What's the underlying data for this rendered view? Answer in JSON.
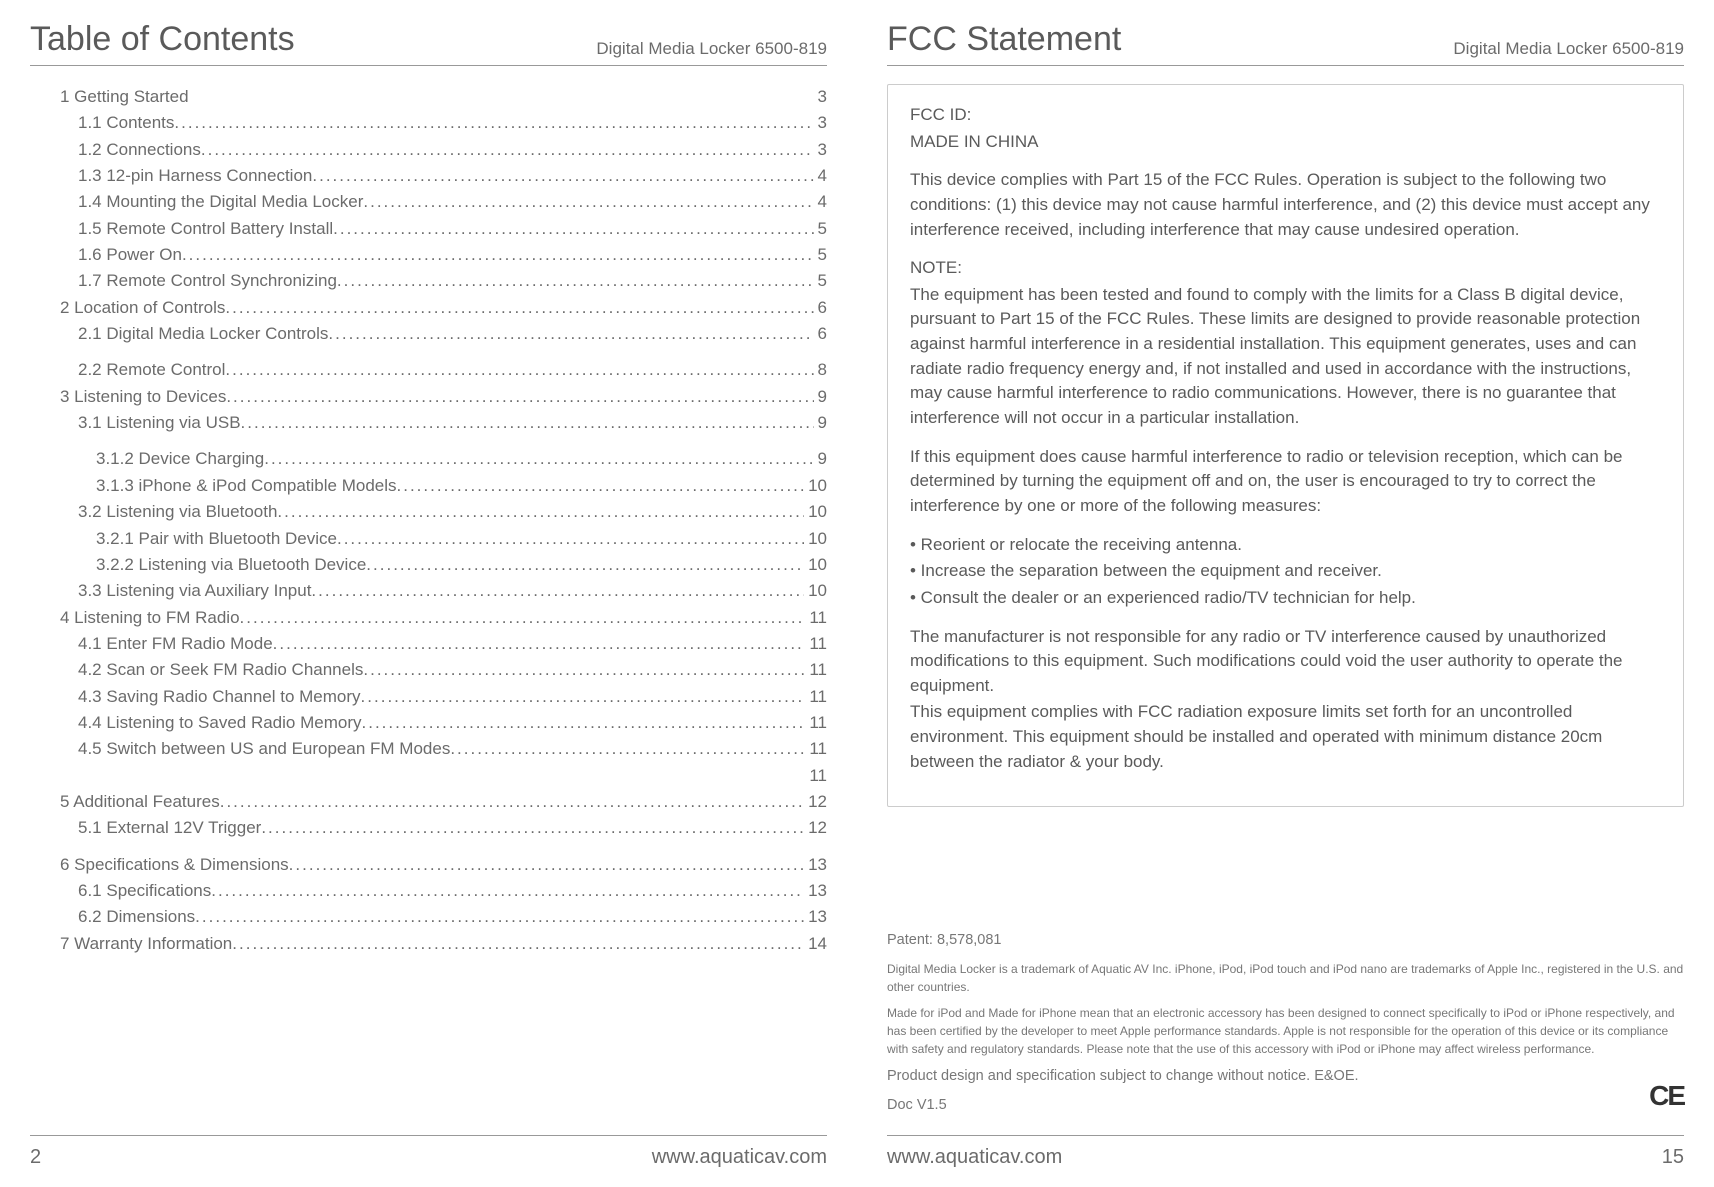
{
  "left": {
    "title": "Table of Contents",
    "subtitle": "Digital Media Locker 6500-819",
    "toc": [
      {
        "label": "1 Getting Started",
        "page": "3",
        "indent": 0,
        "dots": false
      },
      {
        "label": "1.1 Contents",
        "page": "3",
        "indent": 1,
        "dots": true
      },
      {
        "label": "1.2 Connections",
        "page": "3",
        "indent": 1,
        "dots": true
      },
      {
        "label": "1.3 12-pin Harness Connection",
        "page": "4",
        "indent": 1,
        "dots": true
      },
      {
        "label": "1.4 Mounting the Digital Media Locker",
        "page": "4",
        "indent": 1,
        "dots": true
      },
      {
        "label": "1.5 Remote Control Battery Install",
        "page": "5",
        "indent": 1,
        "dots": true
      },
      {
        "label": "1.6 Power On",
        "page": "5",
        "indent": 1,
        "dots": true
      },
      {
        "label": "1.7 Remote Control Synchronizing",
        "page": "5",
        "indent": 1,
        "dots": true
      },
      {
        "label": "2 Location of Controls",
        "page": "6",
        "indent": 0,
        "dots": true
      },
      {
        "label": "2.1 Digital Media Locker Controls",
        "page": "6",
        "indent": 1,
        "dots": true,
        "gap_after": true
      },
      {
        "label": "2.2 Remote Control",
        "page": "8",
        "indent": 1,
        "dots": true
      },
      {
        "label": "3 Listening to Devices",
        "page": "9",
        "indent": 0,
        "dots": true
      },
      {
        "label": "3.1 Listening via USB",
        "page": "9",
        "indent": 1,
        "dots": true,
        "gap_after": true
      },
      {
        "label": "3.1.2 Device Charging",
        "page": "9",
        "indent": 2,
        "dots": true
      },
      {
        "label": "3.1.3 iPhone & iPod Compatible Models",
        "page": "10",
        "indent": 2,
        "dots": true
      },
      {
        "label": "3.2 Listening via Bluetooth",
        "page": "10",
        "indent": 1,
        "dots": true
      },
      {
        "label": "3.2.1 Pair with Bluetooth Device",
        "page": "10",
        "indent": 2,
        "dots": true
      },
      {
        "label": "3.2.2 Listening via Bluetooth Device",
        "page": "10",
        "indent": 2,
        "dots": true
      },
      {
        "label": "3.3 Listening via Auxiliary Input",
        "page": "10",
        "indent": 1,
        "dots": true
      },
      {
        "label": "4 Listening to FM Radio",
        "page": "11",
        "indent": 0,
        "dots": true
      },
      {
        "label": "4.1 Enter FM Radio Mode",
        "page": "11",
        "indent": 1,
        "dots": true
      },
      {
        "label": "4.2 Scan or Seek FM Radio Channels",
        "page": "11",
        "indent": 1,
        "dots": true
      },
      {
        "label": "4.3 Saving Radio Channel to Memory",
        "page": "11",
        "indent": 1,
        "dots": true
      },
      {
        "label": "4.4 Listening to Saved Radio Memory",
        "page": "11",
        "indent": 1,
        "dots": true
      },
      {
        "label": "4.5 Switch between US and European FM Modes",
        "page": "11",
        "indent": 1,
        "dots": true
      },
      {
        "label": "",
        "page": "11",
        "indent": 1,
        "dots": false
      },
      {
        "label": "5 Additional Features",
        "page": "12",
        "indent": 0,
        "dots": true
      },
      {
        "label": "5.1 External 12V Trigger",
        "page": "12",
        "indent": 1,
        "dots": true,
        "gap_after": true
      },
      {
        "label": "6 Specifications & Dimensions",
        "page": "13",
        "indent": 0,
        "dots": true
      },
      {
        "label": "6.1 Specifications",
        "page": "13",
        "indent": 1,
        "dots": true
      },
      {
        "label": "6.2 Dimensions",
        "page": "13",
        "indent": 1,
        "dots": true
      },
      {
        "label": "7 Warranty Information",
        "page": "14",
        "indent": 0,
        "dots": true
      }
    ],
    "footer_page": "2",
    "footer_url": "www.aquaticav.com"
  },
  "right": {
    "title": "FCC Statement",
    "subtitle": "Digital Media Locker 6500-819",
    "fcc_id_label": "FCC ID:",
    "made_in": "MADE IN CHINA",
    "para1": "This device complies with Part 15 of the FCC Rules. Operation is subject to the following two conditions: (1) this device may not cause harmful interference, and (2) this device must accept any interference received, including interference that may cause undesired operation.",
    "note_label": "NOTE:",
    "para2": "The equipment has been tested and found to comply with the limits for a Class B digital device, pursuant to Part 15 of the FCC Rules. These limits are designed to provide reasonable protection against harmful interference in a residential installation. This equipment generates, uses and can radiate radio frequency energy and, if not installed and used in accordance with the instructions, may cause harmful interference to radio communications. However, there is no guarantee that interference will not occur in a particular installation.",
    "para3": "If this equipment does cause harmful interference to radio or television reception, which can be determined by turning the equipment off and on, the user is encouraged to try to correct the interference by one or more of the following measures:",
    "bullet1": "• Reorient or relocate the receiving antenna.",
    "bullet2": "• Increase the separation between the equipment and receiver.",
    "bullet3": "• Consult the dealer or an experienced radio/TV technician for help.",
    "para4": "The manufacturer is not responsible for any radio or TV interference caused by unauthorized modifications to this equipment. Such modifications could void the user authority to operate the equipment.",
    "para5": "This equipment complies with FCC radiation exposure limits set forth for an uncontrolled environment. This equipment should be installed and operated with minimum distance 20cm between the radiator & your body.",
    "legal_patent": "Patent: 8,578,081",
    "legal_tm": "Digital Media Locker is a trademark of Aquatic AV Inc. iPhone, iPod, iPod touch and iPod nano are trademarks of Apple Inc., registered in the U.S. and other countries.",
    "legal_mfi": "Made for iPod and Made for iPhone mean that an electronic accessory has been designed to connect specifically to iPod or iPhone respectively, and has been certified by the developer to meet Apple performance standards. Apple is not responsible for the operation of this device or its compliance with safety and regulatory standards. Please note that the use of this accessory with iPod or iPhone may affect wireless performance.",
    "legal_change": "Product design and specification subject to change without notice. E&OE.",
    "legal_doc": "Doc V1.5",
    "ce_mark": "CE",
    "footer_url": "www.aquaticav.com",
    "footer_page": "15"
  }
}
